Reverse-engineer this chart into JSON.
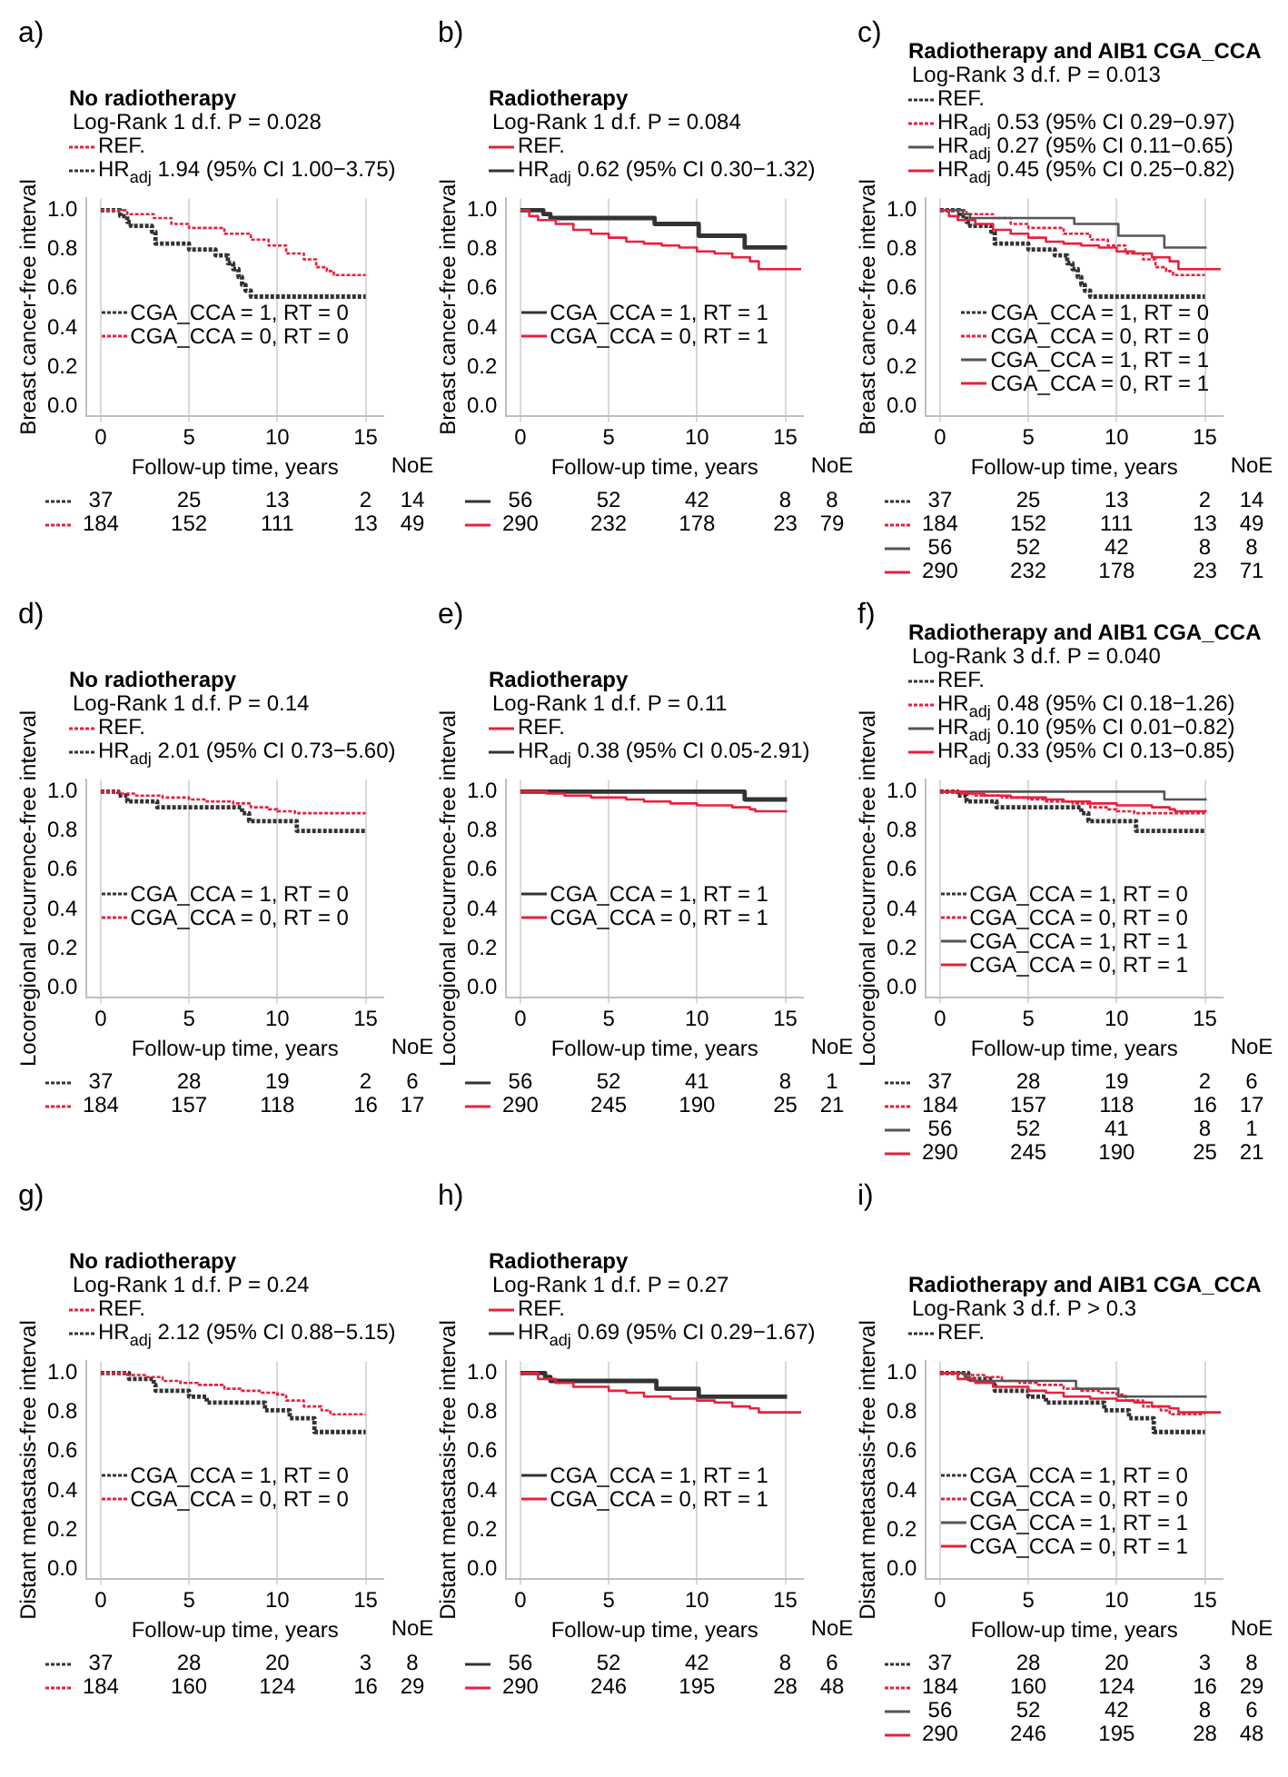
{
  "chart_data": [
    {
      "type": "step",
      "title": "No radiotherapy",
      "subtitle": "Log-Rank 1 d.f. P = 0.028",
      "xlabel": "Follow-up time, years",
      "ylabel": "Breast cancer-free interval",
      "xlim": [
        -0.8,
        16
      ],
      "xticks": [
        0,
        5,
        10,
        15
      ],
      "ylim": [
        -0.05,
        1.06
      ],
      "yticks": [
        {
          "value": 0,
          "label": "0.0"
        },
        {
          "value": 0.2,
          "label": "0.2"
        },
        {
          "value": 0.4,
          "label": "0.4"
        },
        {
          "value": 0.6,
          "label": "0.6"
        },
        {
          "value": 0.8,
          "label": "0.8"
        },
        {
          "value": 1,
          "label": "1.0"
        }
      ],
      "grid": "x",
      "legend": "bottom left",
      "series": [
        {
          "name": "CGA_CCA = 1, RT = 0",
          "color": "#333333",
          "line_style": "dashed",
          "x": [
            0,
            1.1,
            1.5,
            1.7,
            2.9,
            3.1,
            5,
            6.5,
            7.2,
            7.5,
            7.8,
            8.0,
            8.2,
            8.5,
            15
          ],
          "values": [
            1,
            0.97,
            0.94,
            0.92,
            0.89,
            0.83,
            0.8,
            0.77,
            0.73,
            0.7,
            0.66,
            0.62,
            0.59,
            0.56,
            0.56
          ]
        },
        {
          "name": "CGA_CCA = 0, RT = 0",
          "color": "#e8203c",
          "line_style": "dashed",
          "x": [
            0,
            1.5,
            3,
            4,
            5,
            7,
            8.5,
            9.5,
            10.5,
            11.5,
            12.2,
            12.8,
            13.2,
            15
          ],
          "values": [
            1,
            0.98,
            0.96,
            0.93,
            0.91,
            0.88,
            0.85,
            0.82,
            0.78,
            0.75,
            0.71,
            0.69,
            0.67,
            0.67
          ]
        }
      ],
      "annotations": [
        "a)",
        "REF.",
        "HR$_{adj}$ 1.94 (95% CI 1.00−3.75)",
        "NoE",
        "37 25 13 2 14",
        "184 152 111 13 49"
      ]
    },
    {
      "type": "step",
      "title": "Radiotherapy",
      "subtitle": "Log-Rank 1 d.f. P = 0.084",
      "xlabel": "Follow-up time, years",
      "ylabel": "Breast cancer-free interval",
      "xlim": [
        -0.8,
        16
      ],
      "xticks": [
        0,
        5,
        10,
        15
      ],
      "ylim": [
        -0.05,
        1.06
      ],
      "yticks": [
        {
          "value": 0,
          "label": "0.0"
        },
        {
          "value": 0.2,
          "label": "0.2"
        },
        {
          "value": 0.4,
          "label": "0.4"
        },
        {
          "value": 0.6,
          "label": "0.6"
        },
        {
          "value": 0.8,
          "label": "0.8"
        },
        {
          "value": 1,
          "label": "1.0"
        }
      ],
      "grid": "x",
      "legend": "bottom left",
      "series": [
        {
          "name": "CGA_CCA = 1, RT = 1",
          "color": "#333333",
          "line_style": "solid",
          "x": [
            0,
            1.3,
            1.7,
            7.6,
            10.1,
            12.7,
            15.1
          ],
          "values": [
            1,
            0.98,
            0.96,
            0.93,
            0.87,
            0.81,
            0.81
          ]
        },
        {
          "name": "CGA_CCA = 0, RT = 1",
          "color": "#e8203c",
          "line_style": "solid",
          "x": [
            0,
            0.5,
            1,
            2,
            3,
            4,
            5,
            6,
            7,
            8,
            9,
            10,
            11,
            12,
            13,
            13.5,
            15.9
          ],
          "values": [
            1,
            0.97,
            0.95,
            0.93,
            0.9,
            0.88,
            0.86,
            0.84,
            0.83,
            0.82,
            0.81,
            0.79,
            0.78,
            0.76,
            0.74,
            0.7,
            0.7
          ]
        }
      ],
      "annotations": [
        "b)",
        "REF.",
        "HR$_{adj}$ 0.62 (95% CI 0.30−1.32)",
        "NoE",
        "56 52 42 8 8",
        "290 232 178 23 79"
      ]
    },
    {
      "type": "step",
      "title": "Radiotherapy and AIB1 CGA_CCA",
      "subtitle": "Log-Rank 3 d.f. P = 0.013",
      "xlabel": "Follow-up time, years",
      "ylabel": "Breast cancer-free interval",
      "xlim": [
        -0.8,
        16
      ],
      "xticks": [
        0,
        5,
        10,
        15
      ],
      "ylim": [
        -0.05,
        1.06
      ],
      "yticks": [
        {
          "value": 0,
          "label": "0.0"
        },
        {
          "value": 0.2,
          "label": "0.2"
        },
        {
          "value": 0.4,
          "label": "0.4"
        },
        {
          "value": 0.6,
          "label": "0.6"
        },
        {
          "value": 0.8,
          "label": "0.8"
        },
        {
          "value": 1,
          "label": "1.0"
        }
      ],
      "grid": "x",
      "legend": "bottom",
      "series": [
        {
          "name": "CGA_CCA = 1, RT = 0",
          "color": "#333333",
          "line_style": "dashed",
          "x": [
            0,
            1.1,
            1.5,
            1.7,
            2.9,
            3.1,
            5,
            6.5,
            7.2,
            7.5,
            7.8,
            8.0,
            8.2,
            8.5,
            15
          ],
          "values": [
            1,
            0.97,
            0.94,
            0.92,
            0.89,
            0.83,
            0.8,
            0.77,
            0.73,
            0.7,
            0.66,
            0.62,
            0.59,
            0.56,
            0.56
          ]
        },
        {
          "name": "CGA_CCA = 0, RT = 0",
          "color": "#e8203c",
          "line_style": "dashed",
          "x": [
            0,
            1.5,
            3,
            4,
            5,
            7,
            8.5,
            9.5,
            10.5,
            11.5,
            12.2,
            12.8,
            13.2,
            15
          ],
          "values": [
            1,
            0.98,
            0.96,
            0.93,
            0.91,
            0.88,
            0.85,
            0.82,
            0.78,
            0.75,
            0.71,
            0.69,
            0.67,
            0.67
          ]
        },
        {
          "name": "CGA_CCA = 1, RT = 1",
          "color": "#555555",
          "line_style": "solid",
          "x": [
            0,
            1.3,
            1.7,
            7.6,
            10.1,
            12.7,
            15.1
          ],
          "values": [
            1,
            0.98,
            0.96,
            0.93,
            0.87,
            0.81,
            0.81
          ]
        },
        {
          "name": "CGA_CCA = 0, RT = 1",
          "color": "#e8203c",
          "line_style": "solid",
          "x": [
            0,
            0.5,
            1,
            2,
            3,
            4,
            5,
            6,
            7,
            8,
            9,
            10,
            11,
            12,
            13,
            13.5,
            15.9
          ],
          "values": [
            1,
            0.97,
            0.95,
            0.93,
            0.9,
            0.88,
            0.86,
            0.84,
            0.83,
            0.82,
            0.81,
            0.79,
            0.78,
            0.76,
            0.74,
            0.7,
            0.7
          ]
        }
      ],
      "annotations": [
        "c)",
        "REF.",
        "HR$_{adj}$ 0.53 (95% CI 0.29−0.97)",
        "HR$_{adj}$ 0.27 (95% CI 0.11−0.65)",
        "HR$_{adj}$ 0.45 (95% CI 0.25−0.82)",
        "NoE",
        "37 25 13 2 14",
        "184 152 111 13 49",
        "56 52 42 8 8",
        "290 232 178 23 71"
      ]
    },
    {
      "type": "step",
      "title": "No radiotherapy",
      "subtitle": "Log-Rank 1 d.f. P = 0.14",
      "xlabel": "Follow-up time, years",
      "ylabel": "Locoregional recurrence-free interval",
      "xlim": [
        -0.8,
        16
      ],
      "xticks": [
        0,
        5,
        10,
        15
      ],
      "ylim": [
        -0.05,
        1.06
      ],
      "yticks": [
        {
          "value": 0,
          "label": "0.0"
        },
        {
          "value": 0.2,
          "label": "0.2"
        },
        {
          "value": 0.4,
          "label": "0.4"
        },
        {
          "value": 0.6,
          "label": "0.6"
        },
        {
          "value": 0.8,
          "label": "0.8"
        },
        {
          "value": 1,
          "label": "1.0"
        }
      ],
      "grid": "x",
      "legend": "bottom left",
      "series": [
        {
          "name": "CGA_CCA = 1, RT = 0",
          "color": "#333333",
          "line_style": "dashed",
          "x": [
            0,
            1,
            1.5,
            3.2,
            8,
            8.4,
            11.1,
            15
          ],
          "values": [
            1,
            0.98,
            0.95,
            0.92,
            0.89,
            0.85,
            0.8,
            0.8
          ]
        },
        {
          "name": "CGA_CCA = 0, RT = 0",
          "color": "#e8203c",
          "line_style": "dashed",
          "x": [
            0,
            1,
            2,
            3.5,
            5,
            6,
            7.5,
            8.5,
            9.5,
            10,
            11,
            15
          ],
          "values": [
            1,
            0.99,
            0.98,
            0.97,
            0.96,
            0.95,
            0.94,
            0.92,
            0.91,
            0.9,
            0.89,
            0.89
          ]
        }
      ],
      "annotations": [
        "d)",
        "REF.",
        "HR$_{adj}$ 2.01 (95% CI 0.73−5.60)",
        "NoE",
        "37 28 19 2 6",
        "184 157 118 16 17"
      ]
    },
    {
      "type": "step",
      "title": "Radiotherapy",
      "subtitle": "Log-Rank 1 d.f. P = 0.11",
      "xlabel": "Follow-up time, years",
      "ylabel": "Locoregional recurrence-free interval",
      "xlim": [
        -0.8,
        16
      ],
      "xticks": [
        0,
        5,
        10,
        15
      ],
      "ylim": [
        -0.05,
        1.06
      ],
      "yticks": [
        {
          "value": 0,
          "label": "0.0"
        },
        {
          "value": 0.2,
          "label": "0.2"
        },
        {
          "value": 0.4,
          "label": "0.4"
        },
        {
          "value": 0.6,
          "label": "0.6"
        },
        {
          "value": 0.8,
          "label": "0.8"
        },
        {
          "value": 1,
          "label": "1.0"
        }
      ],
      "grid": "x",
      "legend": "bottom left",
      "series": [
        {
          "name": "CGA_CCA = 1, RT = 1",
          "color": "#333333",
          "line_style": "solid",
          "x": [
            0,
            12.7,
            15.1
          ],
          "values": [
            1,
            0.96,
            0.96
          ]
        },
        {
          "name": "CGA_CCA = 0, RT = 1",
          "color": "#e8203c",
          "line_style": "solid",
          "x": [
            0,
            1.5,
            2.5,
            4,
            6,
            7,
            8.5,
            10,
            12,
            13,
            13.3,
            15.1
          ],
          "values": [
            1,
            0.99,
            0.98,
            0.97,
            0.96,
            0.95,
            0.94,
            0.93,
            0.92,
            0.91,
            0.9,
            0.9
          ]
        }
      ],
      "annotations": [
        "e)",
        "REF.",
        "HR$_{adj}$ 0.38 (95% CI 0.05-2.91)",
        "NoE",
        "56 52 41 8 1",
        "290 245 190 25 21"
      ]
    },
    {
      "type": "step",
      "title": "Radiotherapy and AIB1 CGA_CCA",
      "subtitle": "Log-Rank 3 d.f. P = 0.040",
      "xlabel": "Follow-up time, years",
      "ylabel": "Locoregional recurrence-free interval",
      "xlim": [
        -0.8,
        16
      ],
      "xticks": [
        0,
        5,
        10,
        15
      ],
      "ylim": [
        -0.05,
        1.06
      ],
      "yticks": [
        {
          "value": 0,
          "label": "0.0"
        },
        {
          "value": 0.2,
          "label": "0.2"
        },
        {
          "value": 0.4,
          "label": "0.4"
        },
        {
          "value": 0.6,
          "label": "0.6"
        },
        {
          "value": 0.8,
          "label": "0.8"
        },
        {
          "value": 1,
          "label": "1.0"
        }
      ],
      "grid": "x",
      "legend": "bottom left",
      "series": [
        {
          "name": "CGA_CCA = 1, RT = 0",
          "color": "#333333",
          "line_style": "dashed",
          "x": [
            0,
            1,
            1.5,
            3.2,
            8,
            8.4,
            11.1,
            15
          ],
          "values": [
            1,
            0.98,
            0.95,
            0.92,
            0.89,
            0.85,
            0.8,
            0.8
          ]
        },
        {
          "name": "CGA_CCA = 0, RT = 0",
          "color": "#e8203c",
          "line_style": "dashed",
          "x": [
            0,
            1,
            2,
            3.5,
            5,
            6,
            7.5,
            8.5,
            9.5,
            10,
            11,
            15
          ],
          "values": [
            1,
            0.99,
            0.98,
            0.97,
            0.96,
            0.95,
            0.94,
            0.92,
            0.91,
            0.9,
            0.89,
            0.89
          ]
        },
        {
          "name": "CGA_CCA = 1, RT = 1",
          "color": "#555555",
          "line_style": "solid",
          "x": [
            0,
            12.7,
            15.1
          ],
          "values": [
            1,
            0.96,
            0.96
          ]
        },
        {
          "name": "CGA_CCA = 0, RT = 1",
          "color": "#e8203c",
          "line_style": "solid",
          "x": [
            0,
            1.5,
            2.5,
            4,
            6,
            7,
            8.5,
            10,
            12,
            13,
            13.3,
            15.1
          ],
          "values": [
            1,
            0.99,
            0.98,
            0.97,
            0.96,
            0.95,
            0.94,
            0.93,
            0.92,
            0.91,
            0.9,
            0.9
          ]
        }
      ],
      "annotations": [
        "f)",
        "REF.",
        "HR$_{adj}$ 0.48 (95% CI 0.18−1.26)",
        "HR$_{adj}$ 0.10 (95% CI 0.01−0.82)",
        "HR$_{adj}$ 0.33 (95% CI 0.13−0.85)",
        "NoE",
        "37 28 19 2 6",
        "184 157 118 16 17",
        "56 52 41 8 1",
        "290 245 190 25 21"
      ]
    },
    {
      "type": "step",
      "title": "No radiotherapy",
      "subtitle": "Log-Rank 1 d.f. P = 0.24",
      "xlabel": "Follow-up time, years",
      "ylabel": "Distant metastasis-free interval",
      "xlim": [
        -0.8,
        16
      ],
      "xticks": [
        0,
        5,
        10,
        15
      ],
      "ylim": [
        -0.05,
        1.06
      ],
      "yticks": [
        {
          "value": 0,
          "label": "0.0"
        },
        {
          "value": 0.2,
          "label": "0.2"
        },
        {
          "value": 0.4,
          "label": "0.4"
        },
        {
          "value": 0.6,
          "label": "0.6"
        },
        {
          "value": 0.8,
          "label": "0.8"
        },
        {
          "value": 1,
          "label": "1.0"
        }
      ],
      "grid": "x",
      "legend": "bottom left",
      "series": [
        {
          "name": "CGA_CCA = 1, RT = 0",
          "color": "#333333",
          "line_style": "dashed",
          "x": [
            0,
            1.6,
            3,
            3.1,
            5,
            6,
            9.3,
            10.7,
            12.1,
            15
          ],
          "values": [
            1,
            0.97,
            0.94,
            0.91,
            0.88,
            0.85,
            0.81,
            0.77,
            0.7,
            0.7
          ]
        },
        {
          "name": "CGA_CCA = 0, RT = 0",
          "color": "#e8203c",
          "line_style": "dashed",
          "x": [
            0,
            1.5,
            2.5,
            3.5,
            4.5,
            5.5,
            7,
            8,
            9,
            10,
            10.5,
            11.5,
            12.5,
            13,
            15
          ],
          "values": [
            1,
            0.99,
            0.98,
            0.96,
            0.95,
            0.94,
            0.92,
            0.91,
            0.9,
            0.89,
            0.86,
            0.83,
            0.81,
            0.79,
            0.79
          ]
        }
      ],
      "annotations": [
        "g)",
        "REF.",
        "HR$_{adj}$ 2.12 (95% CI 0.88−5.15)",
        "NoE",
        "37 28 20 3 8",
        "184 160 124 16 29"
      ]
    },
    {
      "type": "step",
      "title": "Radiotherapy",
      "subtitle": "Log-Rank 1 d.f. P = 0.27",
      "xlabel": "Follow-up time, years",
      "ylabel": "Distant metastasis-free interval",
      "xlim": [
        -0.8,
        16
      ],
      "xticks": [
        0,
        5,
        10,
        15
      ],
      "ylim": [
        -0.05,
        1.06
      ],
      "yticks": [
        {
          "value": 0,
          "label": "0.0"
        },
        {
          "value": 0.2,
          "label": "0.2"
        },
        {
          "value": 0.4,
          "label": "0.4"
        },
        {
          "value": 0.6,
          "label": "0.6"
        },
        {
          "value": 0.8,
          "label": "0.8"
        },
        {
          "value": 1,
          "label": "1.0"
        }
      ],
      "grid": "x",
      "legend": "bottom left",
      "series": [
        {
          "name": "CGA_CCA = 1, RT = 1",
          "color": "#333333",
          "line_style": "solid",
          "x": [
            0,
            1.4,
            1.7,
            7.7,
            10.1,
            15.1
          ],
          "values": [
            1,
            0.98,
            0.96,
            0.92,
            0.88,
            0.88
          ]
        },
        {
          "name": "CGA_CCA = 0, RT = 1",
          "color": "#e8203c",
          "line_style": "solid",
          "x": [
            0,
            1,
            2,
            3,
            5,
            6,
            7,
            8.5,
            10,
            11,
            12,
            13,
            13.5,
            15.9
          ],
          "values": [
            1,
            0.97,
            0.95,
            0.93,
            0.91,
            0.9,
            0.88,
            0.87,
            0.86,
            0.85,
            0.83,
            0.82,
            0.8,
            0.8
          ]
        }
      ],
      "annotations": [
        "h)",
        "REF.",
        "HR$_{adj}$ 0.69 (95% CI 0.29−1.67)",
        "NoE",
        "56 52 42 8 6",
        "290 246 195 28 48"
      ]
    },
    {
      "type": "step",
      "title": "Radiotherapy and AIB1 CGA_CCA",
      "subtitle": "Log-Rank 3 d.f. P > 0.3",
      "xlabel": "Follow-up time, years",
      "ylabel": "Distant metastasis-free interval",
      "xlim": [
        -0.8,
        16
      ],
      "xticks": [
        0,
        5,
        10,
        15
      ],
      "ylim": [
        -0.05,
        1.06
      ],
      "yticks": [
        {
          "value": 0,
          "label": "0.0"
        },
        {
          "value": 0.2,
          "label": "0.2"
        },
        {
          "value": 0.4,
          "label": "0.4"
        },
        {
          "value": 0.6,
          "label": "0.6"
        },
        {
          "value": 0.8,
          "label": "0.8"
        },
        {
          "value": 1,
          "label": "1.0"
        }
      ],
      "grid": "x",
      "legend": "bottom left",
      "series": [
        {
          "name": "CGA_CCA = 1, RT = 0",
          "color": "#333333",
          "line_style": "dashed",
          "x": [
            0,
            1.6,
            3,
            3.1,
            5,
            6,
            9.3,
            10.7,
            12.1,
            15
          ],
          "values": [
            1,
            0.97,
            0.94,
            0.91,
            0.88,
            0.85,
            0.81,
            0.77,
            0.7,
            0.7
          ]
        },
        {
          "name": "CGA_CCA = 0, RT = 0",
          "color": "#e8203c",
          "line_style": "dashed",
          "x": [
            0,
            1.5,
            2.5,
            3.5,
            4.5,
            5.5,
            7,
            8,
            9,
            10,
            10.5,
            11.5,
            12.5,
            13,
            15
          ],
          "values": [
            1,
            0.99,
            0.98,
            0.96,
            0.95,
            0.94,
            0.92,
            0.91,
            0.9,
            0.89,
            0.86,
            0.83,
            0.81,
            0.79,
            0.79
          ]
        },
        {
          "name": "CGA_CCA = 1, RT = 1",
          "color": "#555555",
          "line_style": "solid",
          "x": [
            0,
            1.4,
            1.7,
            7.7,
            10.1,
            15.1
          ],
          "values": [
            1,
            0.98,
            0.96,
            0.92,
            0.88,
            0.88
          ]
        },
        {
          "name": "CGA_CCA = 0, RT = 1",
          "color": "#e8203c",
          "line_style": "solid",
          "x": [
            0,
            1,
            2,
            3,
            5,
            6,
            7,
            8.5,
            10,
            11,
            12,
            13,
            13.5,
            15.9
          ],
          "values": [
            1,
            0.97,
            0.95,
            0.93,
            0.91,
            0.9,
            0.88,
            0.87,
            0.86,
            0.85,
            0.83,
            0.82,
            0.8,
            0.8
          ]
        }
      ],
      "annotations": [
        "i)",
        "REF.",
        "NoE",
        "37 28 20 3 8",
        "184 160 124 16 29",
        "56 52 42 8 6",
        "290 246 195 28 48"
      ]
    }
  ]
}
